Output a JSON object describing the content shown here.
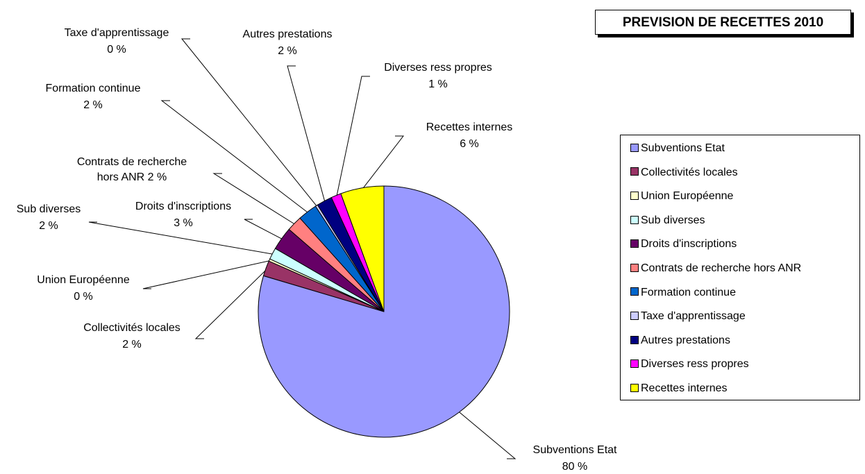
{
  "chart_data": {
    "type": "pie",
    "title": "PREVISION DE RECETTES 2010",
    "legend_position": "right",
    "slices": [
      {
        "label": "Subventions Etat",
        "value": 80,
        "percent_label": "80 %",
        "color": "#9999FF"
      },
      {
        "label": "Collectivités locales",
        "value": 2,
        "percent_label": "2 %",
        "color": "#993366"
      },
      {
        "label": "Union Européenne",
        "value": 0.3,
        "percent_label": "0 %",
        "color": "#FFFFCC"
      },
      {
        "label": "Sub diverses",
        "value": 1.5,
        "percent_label": "2 %",
        "color": "#CCFFFF"
      },
      {
        "label": "Droits d'inscriptions",
        "value": 3,
        "percent_label": "3 %",
        "color": "#660066"
      },
      {
        "label": "Contrats de recherche hors ANR",
        "value": 2,
        "percent_label": "2 %",
        "color": "#FF8080"
      },
      {
        "label": "Formation continue",
        "value": 2.5,
        "percent_label": "2 %",
        "color": "#0066CC"
      },
      {
        "label": "Taxe d'apprentissage",
        "value": 0.3,
        "percent_label": "0 %",
        "color": "#CCCCFF"
      },
      {
        "label": "Autres prestations",
        "value": 2,
        "percent_label": "2 %",
        "color": "#000080"
      },
      {
        "label": "Diverses ress propres",
        "value": 1.3,
        "percent_label": "1 %",
        "color": "#FF00FF"
      },
      {
        "label": "Recettes internes",
        "value": 5.6,
        "percent_label": "6 %",
        "color": "#FFFF00"
      }
    ]
  }
}
